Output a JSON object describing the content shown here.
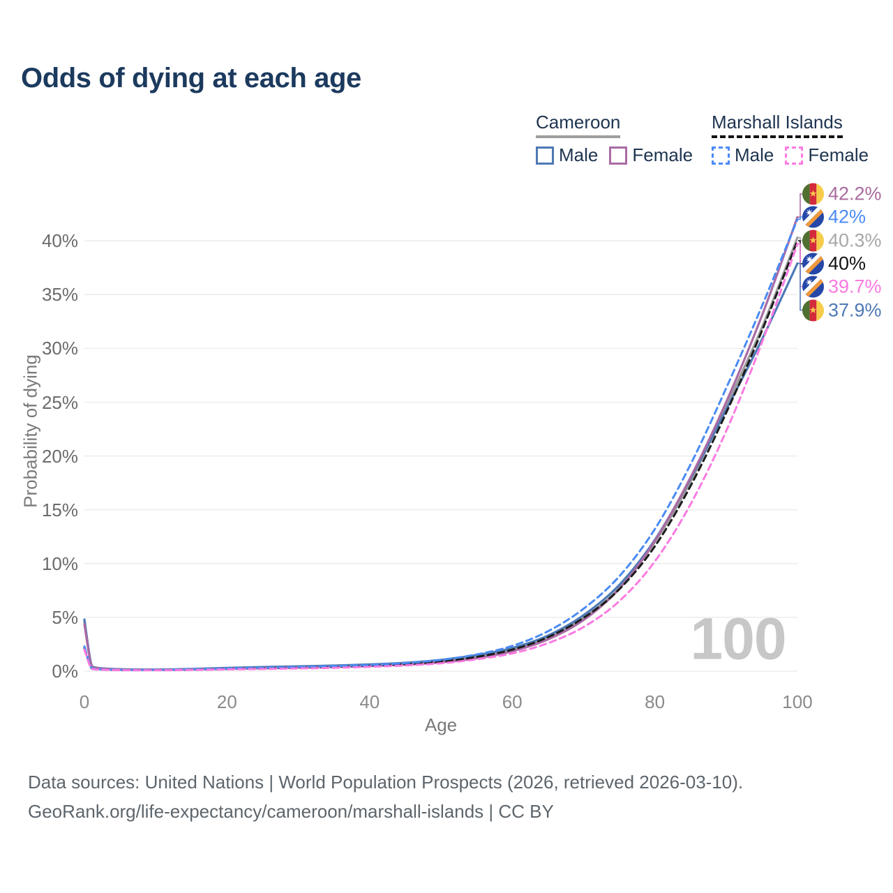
{
  "title": "Odds of dying at each age",
  "legend": {
    "groups": [
      {
        "label": "Cameroon",
        "line_style": "solid",
        "underline_color": "#9e9e9e",
        "items": [
          {
            "label": "Male",
            "color": "#4e79b5"
          },
          {
            "label": "Female",
            "color": "#a96ba4"
          }
        ]
      },
      {
        "label": "Marshall Islands",
        "line_style": "dashed",
        "underline_color": "#141414",
        "items": [
          {
            "label": "Male",
            "color": "#4b8bf4"
          },
          {
            "label": "Female",
            "color": "#fb7ae1"
          }
        ]
      }
    ]
  },
  "axes": {
    "y_title": "Probability of dying",
    "x_title": "Age",
    "y_ticks": [
      "0%",
      "5%",
      "10%",
      "15%",
      "20%",
      "25%",
      "30%",
      "35%",
      "40%"
    ],
    "x_ticks": [
      "0",
      "20",
      "40",
      "60",
      "80",
      "100"
    ]
  },
  "watermark": "100",
  "end_labels": [
    {
      "flag": "cameroon",
      "series": "Cameroon Female",
      "value": "42.2%",
      "color": "#a96a9f"
    },
    {
      "flag": "marshall-islands",
      "series": "Marshall Islands Male",
      "value": "42%",
      "color": "#4b8bf4"
    },
    {
      "flag": "cameroon",
      "series": "Cameroon (both sexes)",
      "value": "40.3%",
      "color": "#a8a8a8"
    },
    {
      "flag": "marshall-islands",
      "series": "Marshall Islands (both sexes)",
      "value": "40%",
      "color": "#111111"
    },
    {
      "flag": "marshall-islands",
      "series": "Marshall Islands Female",
      "value": "39.7%",
      "color": "#f97ae0"
    },
    {
      "flag": "cameroon",
      "series": "Cameroon Male",
      "value": "37.9%",
      "color": "#4e79b5"
    }
  ],
  "footer": {
    "line1": "Data sources: United Nations | World Population Prospects (2026, retrieved 2026-03-10).",
    "line2": "GeoRank.org/life-expectancy/cameroon/marshall-islands | CC BY"
  },
  "chart_data": {
    "type": "line",
    "title": "Odds of dying at each age",
    "xlabel": "Age",
    "ylabel": "Probability of dying",
    "x_range": [
      0,
      100
    ],
    "ylim_percent": [
      0,
      44
    ],
    "grid": "horizontal",
    "legend_position": "top-right",
    "x": [
      0,
      1,
      2,
      5,
      10,
      15,
      20,
      25,
      30,
      35,
      40,
      45,
      50,
      55,
      60,
      65,
      70,
      75,
      80,
      85,
      90,
      95,
      100
    ],
    "series": [
      {
        "name": "Cameroon (both sexes)",
        "country": "Cameroon",
        "sex": "both",
        "style": "solid",
        "color": "#9b9b9b",
        "end_label": "40.3%",
        "values_percent": [
          4.6,
          0.52,
          0.28,
          0.17,
          0.14,
          0.18,
          0.26,
          0.33,
          0.4,
          0.46,
          0.55,
          0.69,
          0.93,
          1.35,
          2.0,
          3.1,
          4.95,
          7.7,
          12.0,
          17.6,
          24.6,
          31.9,
          40.3
        ]
      },
      {
        "name": "Cameroon Male",
        "country": "Cameroon",
        "sex": "male",
        "style": "solid",
        "color": "#4e79b5",
        "end_label": "37.9%",
        "values_percent": [
          4.8,
          0.55,
          0.3,
          0.18,
          0.15,
          0.2,
          0.3,
          0.38,
          0.45,
          0.52,
          0.62,
          0.78,
          1.05,
          1.5,
          2.15,
          3.3,
          5.2,
          8.0,
          12.2,
          17.9,
          24.3,
          30.8,
          37.9
        ]
      },
      {
        "name": "Cameroon Female",
        "country": "Cameroon",
        "sex": "female",
        "style": "solid",
        "color": "#a96ba4",
        "end_label": "42.2%",
        "values_percent": [
          4.35,
          0.5,
          0.27,
          0.16,
          0.13,
          0.16,
          0.22,
          0.28,
          0.34,
          0.4,
          0.48,
          0.6,
          0.82,
          1.2,
          1.85,
          2.95,
          4.75,
          7.65,
          12.1,
          18.0,
          25.0,
          33.0,
          42.2
        ]
      },
      {
        "name": "Marshall Islands (both sexes)",
        "country": "Marshall Islands",
        "sex": "both",
        "style": "dashed",
        "color": "#1c1c1c",
        "end_label": "40%",
        "values_percent": [
          2.15,
          0.25,
          0.16,
          0.1,
          0.1,
          0.13,
          0.2,
          0.26,
          0.31,
          0.38,
          0.49,
          0.64,
          0.89,
          1.32,
          2.0,
          3.15,
          4.95,
          7.6,
          11.6,
          17.2,
          24.0,
          31.6,
          40.0
        ]
      },
      {
        "name": "Marshall Islands Male",
        "country": "Marshall Islands",
        "sex": "male",
        "style": "dashed",
        "color": "#4b8bf4",
        "end_label": "42%",
        "values_percent": [
          2.3,
          0.28,
          0.18,
          0.12,
          0.11,
          0.16,
          0.24,
          0.31,
          0.38,
          0.46,
          0.58,
          0.75,
          1.05,
          1.55,
          2.35,
          3.7,
          5.8,
          8.8,
          13.2,
          19.2,
          26.3,
          33.9,
          42.0
        ]
      },
      {
        "name": "Marshall Islands Female",
        "country": "Marshall Islands",
        "sex": "female",
        "style": "dashed",
        "color": "#fb7ae1",
        "end_label": "39.7%",
        "values_percent": [
          2.0,
          0.22,
          0.14,
          0.09,
          0.08,
          0.11,
          0.16,
          0.2,
          0.25,
          0.31,
          0.4,
          0.53,
          0.73,
          1.1,
          1.65,
          2.6,
          4.1,
          6.5,
          10.2,
          15.5,
          22.3,
          30.5,
          39.7
        ]
      }
    ]
  }
}
